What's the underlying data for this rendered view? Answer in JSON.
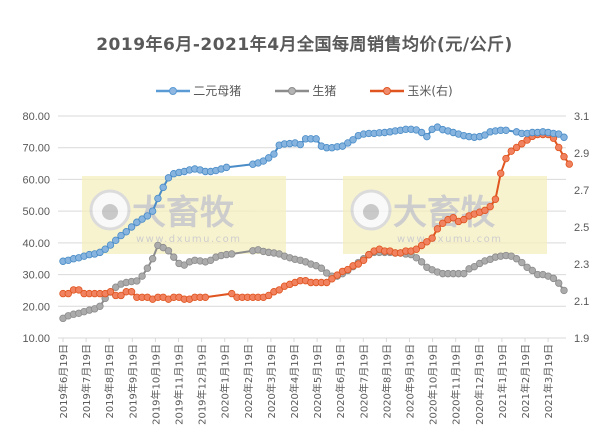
{
  "title": "2019年6月-2021年4月全国每周销售均价(元/公斤)",
  "legend": [
    {
      "label": "二元母猪",
      "color": "#5b9bd5"
    },
    {
      "label": "生猪",
      "color": "#a5a5a5"
    },
    {
      "label": "玉米(右)",
      "color": "#ed7d31"
    }
  ],
  "watermark": {
    "brand": "大畜牧",
    "url": "www.dxumu.com"
  },
  "chart_data": {
    "type": "line",
    "title": "2019年6月-2021年4月全国每周销售均价(元/公斤)",
    "xlabel": "",
    "ylabel": "",
    "y_left": {
      "ticks": [
        "10.00",
        "20.00",
        "30.00",
        "40.00",
        "50.00",
        "60.00",
        "70.00",
        "80.00"
      ],
      "range": [
        10,
        80
      ]
    },
    "y_right": {
      "ticks": [
        "1.9",
        "2.1",
        "2.3",
        "2.5",
        "2.7",
        "2.9",
        "3.1"
      ],
      "range": [
        1.9,
        3.1
      ]
    },
    "x_tick_labels": [
      "2019年6月19日",
      "2019年7月19日",
      "2019年8月19日",
      "2019年9月19日",
      "2019年10月19日",
      "2019年11月19日",
      "2019年12月19日",
      "2020年1月19日",
      "2020年2月19日",
      "2020年3月19日",
      "2020年4月19日",
      "2020年5月19日",
      "2020年6月19日",
      "2020年7月19日",
      "2020年8月19日",
      "2020年9月19日",
      "2020年10月19日",
      "2020年11月19日",
      "2020年12月19日",
      "2021年1月19日",
      "2021年2月19日",
      "2021年3月19日"
    ],
    "grid": true,
    "legend_position": "top",
    "x_start_week_index": 0,
    "series": [
      {
        "name": "二元母猪",
        "axis": "left",
        "color": "#5b9bd5",
        "values": [
          34.2,
          34.5,
          35.0,
          35.3,
          35.8,
          36.3,
          36.5,
          37.0,
          38.0,
          39.3,
          40.8,
          42.3,
          43.5,
          45.0,
          46.5,
          47.5,
          48.5,
          50.0,
          54.0,
          57.5,
          60.5,
          61.8,
          62.2,
          62.5,
          63.0,
          63.3,
          63.0,
          62.5,
          62.5,
          62.8,
          63.3,
          63.8,
          null,
          null,
          null,
          null,
          64.8,
          65.2,
          65.8,
          66.8,
          68.0,
          70.8,
          71.2,
          71.3,
          71.5,
          71.0,
          72.8,
          72.8,
          72.8,
          70.5,
          70.0,
          70.0,
          70.3,
          70.5,
          71.5,
          72.5,
          73.8,
          74.3,
          74.5,
          74.5,
          74.7,
          74.8,
          75.0,
          75.3,
          75.5,
          75.8,
          75.8,
          75.6,
          74.8,
          73.5,
          75.8,
          76.5,
          75.7,
          75.3,
          74.8,
          74.3,
          73.8,
          73.5,
          73.3,
          73.5,
          74.0,
          75.0,
          75.3,
          75.5,
          75.5,
          null,
          75.0,
          74.5,
          74.5,
          74.8,
          74.8,
          75.0,
          74.8,
          74.5,
          74.3,
          73.3
        ]
      },
      {
        "name": "生猪",
        "axis": "left",
        "color": "#a5a5a5",
        "values": [
          16.2,
          17.0,
          17.5,
          17.8,
          18.3,
          18.8,
          19.2,
          20.0,
          22.5,
          24.5,
          26.0,
          27.0,
          27.5,
          27.8,
          28.0,
          29.5,
          32.0,
          35.0,
          39.2,
          38.5,
          37.5,
          35.5,
          33.5,
          33.0,
          34.0,
          34.5,
          34.3,
          34.0,
          34.5,
          35.5,
          36.0,
          36.3,
          36.5,
          null,
          null,
          null,
          37.5,
          37.8,
          37.3,
          37.0,
          36.8,
          36.5,
          35.8,
          35.3,
          34.8,
          34.5,
          34.0,
          33.3,
          32.8,
          32.0,
          30.5,
          29.5,
          29.5,
          30.3,
          31.3,
          32.5,
          33.8,
          35.0,
          36.3,
          37.0,
          37.0,
          37.0,
          37.0,
          36.8,
          36.8,
          36.5,
          36.3,
          35.3,
          34.0,
          32.3,
          31.5,
          30.8,
          30.3,
          30.3,
          30.3,
          30.3,
          30.3,
          31.8,
          32.5,
          33.5,
          34.3,
          34.8,
          35.5,
          35.8,
          36.0,
          35.8,
          35.0,
          33.8,
          32.3,
          31.3,
          30.0,
          30.0,
          29.5,
          28.8,
          27.3,
          25.0
        ]
      },
      {
        "name": "玉米(右)",
        "axis": "right",
        "color": "#ed7d31",
        "values": [
          2.14,
          2.14,
          2.16,
          2.16,
          2.14,
          2.14,
          2.14,
          2.14,
          2.14,
          2.15,
          2.13,
          2.13,
          2.15,
          2.15,
          2.12,
          2.12,
          2.12,
          2.11,
          2.12,
          2.12,
          2.11,
          2.12,
          2.12,
          2.11,
          2.11,
          2.12,
          2.12,
          2.12,
          null,
          null,
          null,
          null,
          2.14,
          2.12,
          2.12,
          2.12,
          2.12,
          2.12,
          2.12,
          2.13,
          2.15,
          2.16,
          2.18,
          2.19,
          2.2,
          2.21,
          2.21,
          2.2,
          2.2,
          2.2,
          2.2,
          2.22,
          2.24,
          2.26,
          2.27,
          2.29,
          2.3,
          2.32,
          2.35,
          2.37,
          2.38,
          2.37,
          2.37,
          2.36,
          2.36,
          2.37,
          2.37,
          2.38,
          2.4,
          2.42,
          2.44,
          2.49,
          2.52,
          2.54,
          2.55,
          2.53,
          2.54,
          2.56,
          2.57,
          2.58,
          2.59,
          2.61,
          2.65,
          2.79,
          2.87,
          2.91,
          2.93,
          2.95,
          2.97,
          2.99,
          3.0,
          3.0,
          3.0,
          2.98,
          2.93,
          2.88,
          2.84
        ]
      }
    ]
  }
}
